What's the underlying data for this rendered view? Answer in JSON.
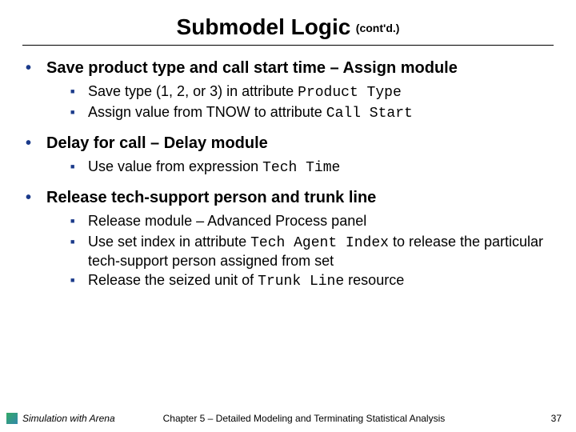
{
  "title": "Submodel Logic",
  "title_suffix": "(cont'd.)",
  "colors": {
    "bullet": "#1a3a8a",
    "text": "#000000",
    "background": "#ffffff"
  },
  "typography": {
    "title_fontsize": 28,
    "l1_fontsize": 20,
    "l2_fontsize": 18,
    "footer_fontsize": 12
  },
  "items": [
    {
      "text": "Save product type and call start time – Assign module",
      "sub": [
        {
          "pre": "Save type (1, 2, or 3) in attribute ",
          "code": "Product Type",
          "post": ""
        },
        {
          "pre": "Assign value from TNOW to attribute ",
          "code": "Call Start",
          "post": ""
        }
      ]
    },
    {
      "text": "Delay for call – Delay module",
      "sub": [
        {
          "pre": "Use value from expression ",
          "code": "Tech Time",
          "post": ""
        }
      ]
    },
    {
      "text": "Release tech-support person and trunk line",
      "sub": [
        {
          "pre": "Release module – Advanced Process panel",
          "code": "",
          "post": ""
        },
        {
          "pre": "Use set index in attribute ",
          "code": "Tech Agent Index",
          "post": " to release the particular tech-support person assigned from set"
        },
        {
          "pre": "Release the seized unit of ",
          "code": "Trunk Line",
          "post": " resource"
        }
      ]
    }
  ],
  "footer": {
    "left": "Simulation with Arena",
    "center": "Chapter 5 – Detailed Modeling and Terminating Statistical Analysis",
    "page": "37"
  }
}
